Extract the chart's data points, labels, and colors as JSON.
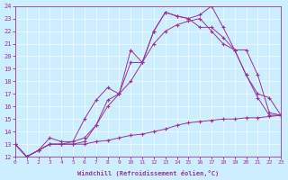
{
  "xlabel": "Windchill (Refroidissement éolien,°C)",
  "bg_color": "#cceeff",
  "line_color": "#993399",
  "xlim": [
    0,
    23
  ],
  "ylim": [
    12,
    24
  ],
  "xticks": [
    0,
    1,
    2,
    3,
    4,
    5,
    6,
    7,
    8,
    9,
    10,
    11,
    12,
    13,
    14,
    15,
    16,
    17,
    18,
    19,
    20,
    21,
    22,
    23
  ],
  "yticks": [
    12,
    13,
    14,
    15,
    16,
    17,
    18,
    19,
    20,
    21,
    22,
    23,
    24
  ],
  "lines": [
    {
      "x": [
        0,
        1,
        2,
        3,
        4,
        5,
        6,
        7,
        8,
        9,
        10,
        11,
        12,
        13,
        14,
        15,
        16,
        17,
        18,
        19,
        20,
        21,
        22,
        23
      ],
      "y": [
        13,
        12,
        12.5,
        13,
        13,
        13,
        13,
        13.2,
        13.3,
        13.5,
        13.7,
        13.8,
        14.0,
        14.2,
        14.5,
        14.7,
        14.8,
        14.9,
        15.0,
        15.0,
        15.1,
        15.1,
        15.2,
        15.3
      ]
    },
    {
      "x": [
        0,
        1,
        2,
        3,
        4,
        5,
        6,
        7,
        8,
        9,
        10,
        11,
        12,
        13,
        14,
        15,
        16,
        17,
        18,
        19,
        20,
        21,
        22,
        23
      ],
      "y": [
        13,
        12,
        12.5,
        13,
        13,
        13.2,
        13.5,
        14.5,
        16.0,
        17.0,
        18.0,
        19.5,
        21.0,
        22.0,
        22.5,
        22.8,
        23.0,
        22.0,
        21.0,
        20.5,
        20.5,
        18.5,
        15.5,
        15.3
      ]
    },
    {
      "x": [
        0,
        1,
        2,
        3,
        4,
        5,
        6,
        7,
        8,
        9,
        10,
        11,
        12,
        13,
        14,
        15,
        16,
        17,
        18,
        19,
        20,
        21,
        22,
        23
      ],
      "y": [
        13,
        12,
        12.5,
        13,
        13,
        13,
        13.2,
        14.5,
        16.5,
        17.0,
        19.5,
        19.5,
        22.0,
        23.5,
        23.2,
        23.0,
        23.3,
        24.0,
        22.3,
        20.5,
        18.5,
        16.7,
        15.3,
        15.3
      ]
    },
    {
      "x": [
        0,
        1,
        2,
        3,
        4,
        5,
        6,
        7,
        8,
        9,
        10,
        11,
        12,
        13,
        14,
        15,
        16,
        17,
        18,
        19,
        20,
        21,
        22,
        23
      ],
      "y": [
        13,
        12,
        12.5,
        13.5,
        13.2,
        13.2,
        15.0,
        16.5,
        17.5,
        17.0,
        20.5,
        19.5,
        22.0,
        23.5,
        23.2,
        23.0,
        22.3,
        22.3,
        21.5,
        20.5,
        18.5,
        17.0,
        16.7,
        15.3
      ]
    }
  ]
}
